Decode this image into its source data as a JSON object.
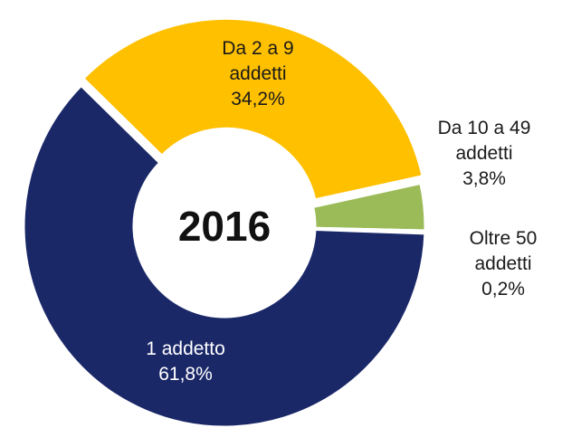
{
  "chart_data": {
    "type": "donut",
    "center_label": "2016",
    "categories": [
      "Da 2 a 9 addetti",
      "Da 10 a 49 addetti",
      "Oltre 50 addetti",
      "1 addetto"
    ],
    "values": [
      34.2,
      3.8,
      0.2,
      61.8
    ],
    "value_labels": [
      "34,2%",
      "3,8%",
      "0,2%",
      "61,8%"
    ],
    "colors": [
      "#FFC000",
      "#9BBB59",
      "#C0504D",
      "#1A2868"
    ]
  }
}
